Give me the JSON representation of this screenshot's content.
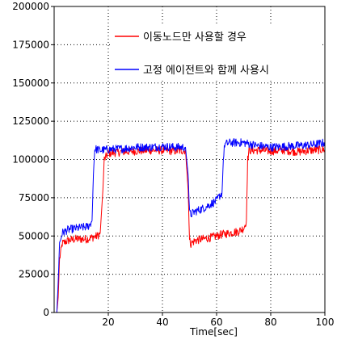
{
  "chart_data": {
    "type": "line",
    "title": "",
    "xlabel": "Time[sec]",
    "ylabel": "",
    "xlim": [
      0,
      100
    ],
    "ylim": [
      0,
      200000
    ],
    "x_ticks": [
      "20",
      "40",
      "60",
      "80",
      "100"
    ],
    "x_tick_values": [
      20,
      40,
      60,
      80,
      100
    ],
    "y_ticks": [
      "0",
      "25000",
      "50000",
      "75000",
      "100000",
      "125000",
      "150000",
      "175000",
      "200000"
    ],
    "y_tick_values": [
      0,
      25000,
      50000,
      75000,
      100000,
      125000,
      150000,
      175000,
      200000
    ],
    "grid": true,
    "legend_position": "top-right",
    "series": [
      {
        "name": "이동노드만 사용할 경우",
        "color": "#ff0000",
        "x": [
          1,
          1.5,
          2,
          3,
          5,
          8,
          10,
          12,
          14,
          16,
          17,
          18,
          18.5,
          20,
          25,
          30,
          35,
          40,
          45,
          48.5,
          49.5,
          50,
          50.5,
          52,
          55,
          58,
          60,
          62,
          65,
          68,
          70,
          71,
          71.5,
          72,
          75,
          80,
          85,
          90,
          95,
          100
        ],
        "y": [
          0,
          10000,
          35000,
          45000,
          47000,
          48000,
          48000,
          48000,
          49000,
          50000,
          52000,
          80000,
          100000,
          104000,
          105000,
          105500,
          106000,
          106000,
          105500,
          106000,
          80000,
          47000,
          45000,
          47000,
          48000,
          49000,
          50000,
          51000,
          52000,
          53000,
          55000,
          60000,
          100000,
          106000,
          106000,
          105500,
          106000,
          105000,
          106000,
          106500
        ]
      },
      {
        "name": "고정 에이전트와 함께 사용시",
        "color": "#0000ff",
        "x": [
          1,
          1.5,
          2,
          3,
          5,
          8,
          10,
          12,
          13,
          14,
          14.5,
          15,
          17,
          20,
          25,
          30,
          35,
          40,
          45,
          48.5,
          49.5,
          50,
          50.5,
          52,
          55,
          58,
          60,
          61,
          62,
          62.5,
          63,
          65,
          70,
          75,
          80,
          85,
          90,
          95,
          100
        ],
        "y": [
          0,
          20000,
          45000,
          52000,
          54000,
          55000,
          55500,
          56000,
          57000,
          60000,
          90000,
          107000,
          106000,
          106500,
          107000,
          108000,
          108000,
          108500,
          108000,
          108000,
          90000,
          65000,
          64000,
          66000,
          68000,
          71000,
          73000,
          76000,
          78000,
          100000,
          110000,
          111000,
          111000,
          109000,
          108000,
          108500,
          109000,
          109500,
          111000
        ]
      }
    ]
  }
}
